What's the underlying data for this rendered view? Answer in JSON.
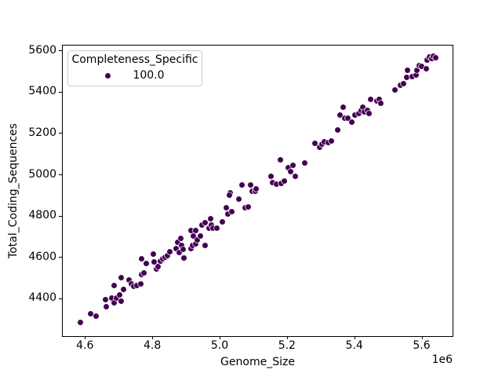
{
  "chart_data": {
    "type": "scatter",
    "title": "",
    "xlabel": "Genome_Size",
    "ylabel": "Total_Coding_Sequences",
    "x_offset_label": "1e6",
    "grid": false,
    "xlim": [
      4534000,
      5692000
    ],
    "ylim": [
      4216,
      5628
    ],
    "x_ticks": {
      "values": [
        4600000,
        4800000,
        5000000,
        5200000,
        5400000,
        5600000
      ],
      "labels": [
        "4.6",
        "4.8",
        "5.0",
        "5.2",
        "5.4",
        "5.6"
      ]
    },
    "y_ticks": {
      "values": [
        4400,
        4600,
        4800,
        5000,
        5200,
        5400,
        5600
      ],
      "labels": [
        "4400",
        "4600",
        "4800",
        "5000",
        "5200",
        "5400",
        "5600"
      ]
    },
    "legend": {
      "title": "Completeness_Specific",
      "position": "upper-left",
      "entries": [
        {
          "label": "100.0",
          "color": "#440154"
        }
      ]
    },
    "series": [
      {
        "name": "100.0",
        "color": "#440154",
        "marker_edge_color": "#ffffff",
        "points": [
          [
            4587000,
            4288
          ],
          [
            4616000,
            4327
          ],
          [
            4634000,
            4315
          ],
          [
            4661000,
            4395
          ],
          [
            4664000,
            4362
          ],
          [
            4679000,
            4404
          ],
          [
            4686000,
            4380
          ],
          [
            4693000,
            4405
          ],
          [
            4686000,
            4466
          ],
          [
            4704000,
            4418
          ],
          [
            4708000,
            4390
          ],
          [
            4714000,
            4448
          ],
          [
            4708000,
            4502
          ],
          [
            4730000,
            4491
          ],
          [
            4737000,
            4472
          ],
          [
            4746000,
            4461
          ],
          [
            4755000,
            4465
          ],
          [
            4765000,
            4472
          ],
          [
            4767000,
            4518
          ],
          [
            4774000,
            4526
          ],
          [
            4769000,
            4594
          ],
          [
            4781000,
            4572
          ],
          [
            4802000,
            4616
          ],
          [
            4806000,
            4578
          ],
          [
            4812000,
            4546
          ],
          [
            4818000,
            4556
          ],
          [
            4825000,
            4584
          ],
          [
            4831000,
            4594
          ],
          [
            4839000,
            4601
          ],
          [
            4845000,
            4610
          ],
          [
            4853000,
            4629
          ],
          [
            4870000,
            4644
          ],
          [
            4876000,
            4673
          ],
          [
            4884000,
            4692
          ],
          [
            4886000,
            4660
          ],
          [
            4881000,
            4625
          ],
          [
            4891000,
            4640
          ],
          [
            4893000,
            4598
          ],
          [
            4914000,
            4644
          ],
          [
            4915000,
            4730
          ],
          [
            4919000,
            4659
          ],
          [
            4921000,
            4705
          ],
          [
            4929000,
            4667
          ],
          [
            4930000,
            4731
          ],
          [
            4934000,
            4687
          ],
          [
            4942000,
            4705
          ],
          [
            4947000,
            4759
          ],
          [
            4958000,
            4770
          ],
          [
            4958000,
            4660
          ],
          [
            4969000,
            4745
          ],
          [
            4973000,
            4787
          ],
          [
            4975000,
            4758
          ],
          [
            4981000,
            4743
          ],
          [
            4991000,
            4743
          ],
          [
            5009000,
            4775
          ],
          [
            5020000,
            4842
          ],
          [
            5024000,
            4813
          ],
          [
            5031000,
            4914
          ],
          [
            5028000,
            4902
          ],
          [
            5037000,
            4822
          ],
          [
            5058000,
            4885
          ],
          [
            5066000,
            4952
          ],
          [
            5076000,
            4842
          ],
          [
            5086000,
            4847
          ],
          [
            5093000,
            4952
          ],
          [
            5097000,
            4923
          ],
          [
            5105000,
            4921
          ],
          [
            5109000,
            4933
          ],
          [
            5152000,
            4994
          ],
          [
            5157000,
            4965
          ],
          [
            5170000,
            4956
          ],
          [
            5183000,
            4961
          ],
          [
            5193000,
            4971
          ],
          [
            5203000,
            5036
          ],
          [
            5212000,
            5017
          ],
          [
            5219000,
            5048
          ],
          [
            5224000,
            4994
          ],
          [
            5180000,
            5074
          ],
          [
            5253000,
            5058
          ],
          [
            5284000,
            5155
          ],
          [
            5296000,
            5136
          ],
          [
            5305000,
            5152
          ],
          [
            5311000,
            5162
          ],
          [
            5323000,
            5159
          ],
          [
            5333000,
            5164
          ],
          [
            5351000,
            5219
          ],
          [
            5357000,
            5293
          ],
          [
            5367000,
            5328
          ],
          [
            5371000,
            5276
          ],
          [
            5381000,
            5276
          ],
          [
            5393000,
            5257
          ],
          [
            5403000,
            5291
          ],
          [
            5413000,
            5298
          ],
          [
            5420000,
            5314
          ],
          [
            5426000,
            5330
          ],
          [
            5429000,
            5308
          ],
          [
            5439000,
            5314
          ],
          [
            5445000,
            5299
          ],
          [
            5449000,
            5369
          ],
          [
            5466000,
            5361
          ],
          [
            5473000,
            5369
          ],
          [
            5478000,
            5349
          ],
          [
            5521000,
            5412
          ],
          [
            5536000,
            5434
          ],
          [
            5546000,
            5444
          ],
          [
            5555000,
            5474
          ],
          [
            5557000,
            5508
          ],
          [
            5571000,
            5479
          ],
          [
            5583000,
            5486
          ],
          [
            5587000,
            5507
          ],
          [
            5592000,
            5531
          ],
          [
            5601000,
            5528
          ],
          [
            5613000,
            5516
          ],
          [
            5616000,
            5559
          ],
          [
            5623000,
            5572
          ],
          [
            5630000,
            5566
          ],
          [
            5636000,
            5577
          ],
          [
            5641000,
            5568
          ]
        ]
      }
    ]
  }
}
